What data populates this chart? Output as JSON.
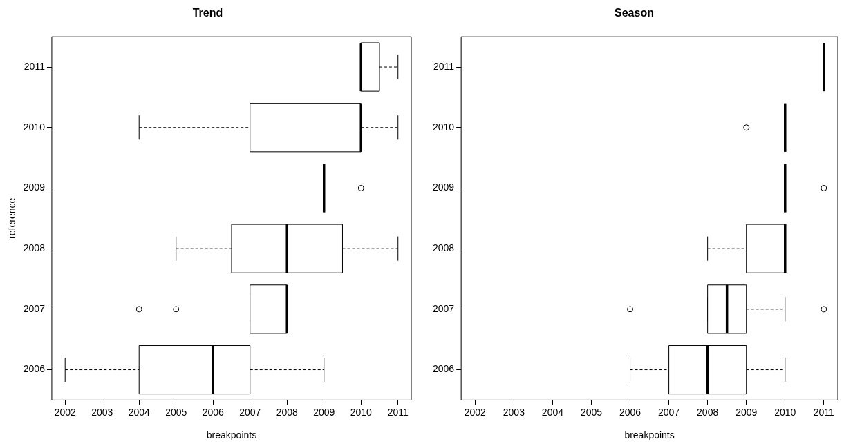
{
  "chart_data": [
    {
      "type": "box",
      "title": "Trend",
      "xlabel": "breakpoints",
      "ylabel": "reference",
      "orientation": "horizontal",
      "categories": [
        "2011",
        "2010",
        "2009",
        "2008",
        "2007",
        "2006"
      ],
      "xlim": [
        2001.64,
        2011.36
      ],
      "xticks": [
        2002,
        2003,
        2004,
        2005,
        2006,
        2007,
        2008,
        2009,
        2010,
        2011
      ],
      "boxes": [
        {
          "low": 2010,
          "q1": 2010,
          "median": 2010,
          "q3": 2010.5,
          "high": 2011
        },
        {
          "low": 2004,
          "q1": 2007,
          "median": 2010,
          "q3": 2010,
          "high": 2011
        },
        {
          "low": 2009,
          "q1": 2009,
          "median": 2009,
          "q3": 2009,
          "high": 2009,
          "outliers": [
            2010
          ]
        },
        {
          "low": 2005,
          "q1": 2006.5,
          "median": 2008,
          "q3": 2009.5,
          "high": 2011
        },
        {
          "low": 2007,
          "q1": 2007,
          "median": 2008,
          "q3": 2008,
          "high": 2008,
          "outliers": [
            2004,
            2005
          ]
        },
        {
          "low": 2002,
          "q1": 2004,
          "median": 2006,
          "q3": 2007,
          "high": 2009
        }
      ]
    },
    {
      "type": "box",
      "title": "Season",
      "xlabel": "breakpoints",
      "orientation": "horizontal",
      "categories": [
        "2011",
        "2010",
        "2009",
        "2008",
        "2007",
        "2006"
      ],
      "xlim": [
        2001.64,
        2011.36
      ],
      "xticks": [
        2002,
        2003,
        2004,
        2005,
        2006,
        2007,
        2008,
        2009,
        2010,
        2011
      ],
      "boxes": [
        {
          "low": 2011,
          "q1": 2011,
          "median": 2011,
          "q3": 2011,
          "high": 2011
        },
        {
          "low": 2010,
          "q1": 2010,
          "median": 2010,
          "q3": 2010,
          "high": 2010,
          "outliers": [
            2009
          ]
        },
        {
          "low": 2010,
          "q1": 2010,
          "median": 2010,
          "q3": 2010,
          "high": 2010,
          "outliers": [
            2011
          ]
        },
        {
          "low": 2008,
          "q1": 2009,
          "median": 2010,
          "q3": 2010,
          "high": 2010
        },
        {
          "low": 2008,
          "q1": 2008,
          "median": 2008.5,
          "q3": 2009,
          "high": 2010,
          "outliers": [
            2006,
            2011
          ]
        },
        {
          "low": 2006,
          "q1": 2007,
          "median": 2008,
          "q3": 2009,
          "high": 2010
        }
      ]
    }
  ]
}
